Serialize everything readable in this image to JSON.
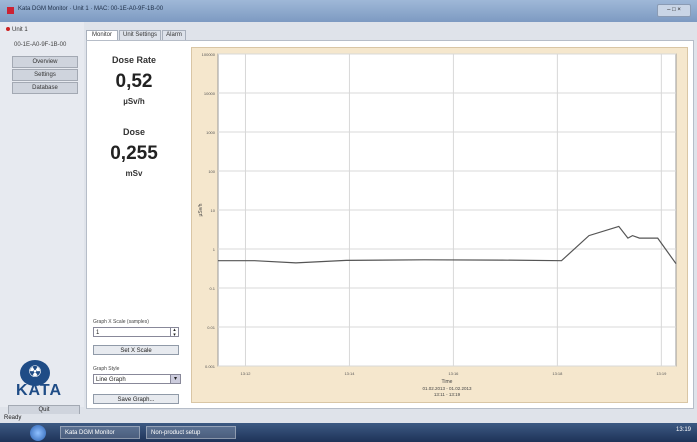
{
  "window": {
    "title": "Kata DGM Monitor · Unit 1 · MAC: 00-1E-A0-9F-1B-00"
  },
  "left": {
    "unit_label": "Unit 1",
    "mac": "00-1E-A0-9F-1B-00",
    "nav": [
      {
        "label": "Overview"
      },
      {
        "label": "Settings"
      },
      {
        "label": "Database"
      }
    ],
    "logo_text": "KATA",
    "quit_label": "Quit"
  },
  "tabs": [
    {
      "label": "Monitor",
      "active": true
    },
    {
      "label": "Unit Settings",
      "active": false
    },
    {
      "label": "Alarm",
      "active": false
    }
  ],
  "readings": {
    "dose_rate_label": "Dose Rate",
    "dose_rate_value": "0,52",
    "dose_rate_unit": "µSv/h",
    "dose_label": "Dose",
    "dose_value": "0,255",
    "dose_unit": "mSv"
  },
  "controls": {
    "scale_label": "Graph X Scale (samples)",
    "scale_value": "1",
    "set_scale_label": "Set X Scale",
    "style_label": "Graph Style",
    "style_value": "Line Graph",
    "save_label": "Save Graph..."
  },
  "status": {
    "text": "Ready"
  },
  "taskbar": {
    "items": [
      {
        "label": "Kata DGM Monitor"
      },
      {
        "label": "Non-product setup"
      }
    ],
    "clock": "13:19"
  },
  "chart_data": {
    "type": "line",
    "title": "",
    "xlabel": "Time",
    "x_subtitle": "01.02.2013 - 01.02.2013",
    "x_subtitle2": "13:11 - 13:19",
    "ylabel": "µSv/h",
    "yscale": "log",
    "ylim": [
      0.001,
      100000
    ],
    "yticks": [
      "0.001",
      "0.01",
      "0.1",
      "1",
      "10",
      "100",
      "1000",
      "10000",
      "100000"
    ],
    "xticks": [
      "13:12",
      "13:14",
      "13:16",
      "13:18",
      "13:19"
    ],
    "grid": true,
    "series": [
      {
        "values": [
          {
            "x": 0.0,
            "y": 0.5
          },
          {
            "x": 0.08,
            "y": 0.5
          },
          {
            "x": 0.17,
            "y": 0.44
          },
          {
            "x": 0.28,
            "y": 0.51
          },
          {
            "x": 0.45,
            "y": 0.53
          },
          {
            "x": 0.62,
            "y": 0.52
          },
          {
            "x": 0.75,
            "y": 0.5
          },
          {
            "x": 0.81,
            "y": 2.2
          },
          {
            "x": 0.875,
            "y": 3.8
          },
          {
            "x": 0.895,
            "y": 1.9
          },
          {
            "x": 0.905,
            "y": 2.2
          },
          {
            "x": 0.92,
            "y": 1.9
          },
          {
            "x": 0.96,
            "y": 1.9
          },
          {
            "x": 1.0,
            "y": 0.42
          }
        ]
      }
    ]
  }
}
